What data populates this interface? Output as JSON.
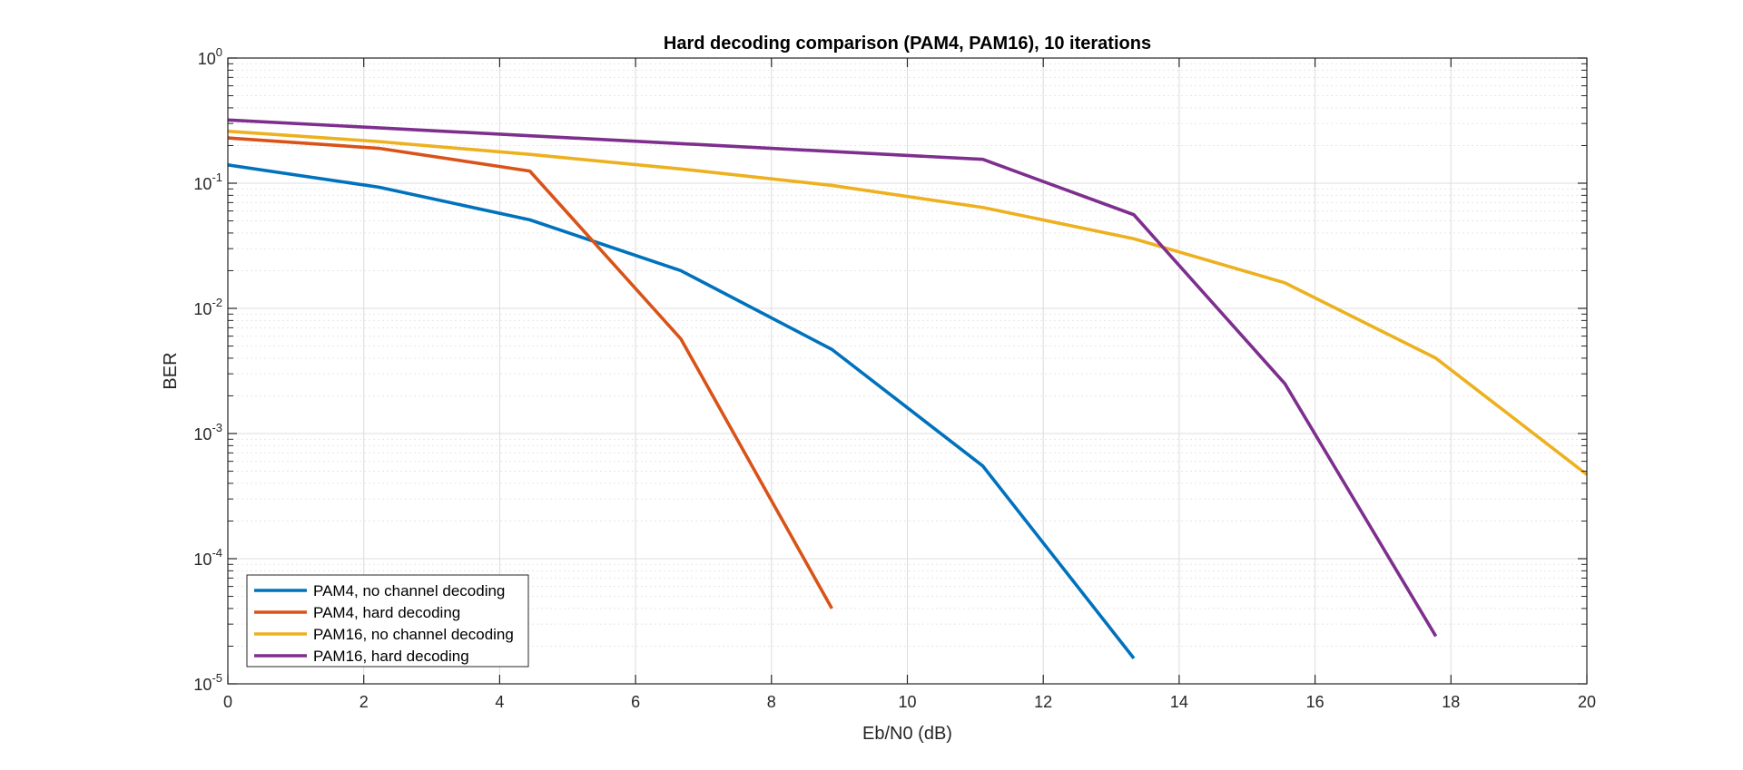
{
  "chart_data": {
    "type": "line",
    "title": "Hard decoding comparison (PAM4, PAM16), 10 iterations",
    "xlabel": "Eb/N0 (dB)",
    "ylabel": "BER",
    "xlim": [
      0,
      20
    ],
    "ylim": [
      1e-05,
      1
    ],
    "yscale": "log",
    "xticks": [
      0,
      2,
      4,
      6,
      8,
      10,
      12,
      14,
      16,
      18,
      20
    ],
    "yticks": [
      {
        "base": "10",
        "exp": "0",
        "value": 1
      },
      {
        "base": "10",
        "exp": "-1",
        "value": 0.1
      },
      {
        "base": "10",
        "exp": "-2",
        "value": 0.01
      },
      {
        "base": "10",
        "exp": "-3",
        "value": 0.001
      },
      {
        "base": "10",
        "exp": "-4",
        "value": 0.0001
      },
      {
        "base": "10",
        "exp": "-5",
        "value": 1e-05
      }
    ],
    "grid": true,
    "minor_grid": true,
    "legend_position": "bottom-left",
    "series": [
      {
        "name": "PAM4, no channel decoding",
        "color": "#0072BD",
        "x": [
          0,
          2.222,
          4.444,
          6.667,
          8.889,
          11.111,
          13.333
        ],
        "y": [
          0.14,
          0.093,
          0.051,
          0.02,
          0.0047,
          0.00055,
          1.6e-05
        ]
      },
      {
        "name": "PAM4, hard decoding",
        "color": "#D95319",
        "x": [
          0,
          2.222,
          4.444,
          6.667,
          8.889
        ],
        "y": [
          0.23,
          0.19,
          0.125,
          0.0057,
          4e-05
        ]
      },
      {
        "name": "PAM16, no channel decoding",
        "color": "#EDB120",
        "x": [
          0,
          2.222,
          4.444,
          6.667,
          8.889,
          11.111,
          13.333,
          15.556,
          17.778,
          20
        ],
        "y": [
          0.26,
          0.215,
          0.17,
          0.13,
          0.096,
          0.064,
          0.036,
          0.016,
          0.004,
          0.00047
        ]
      },
      {
        "name": "PAM16, hard decoding",
        "color": "#7E2F8E",
        "x": [
          0,
          11.111,
          13.333,
          15.556,
          17.778
        ],
        "y": [
          0.32,
          0.155,
          0.056,
          0.0025,
          2.4e-05
        ]
      }
    ]
  }
}
